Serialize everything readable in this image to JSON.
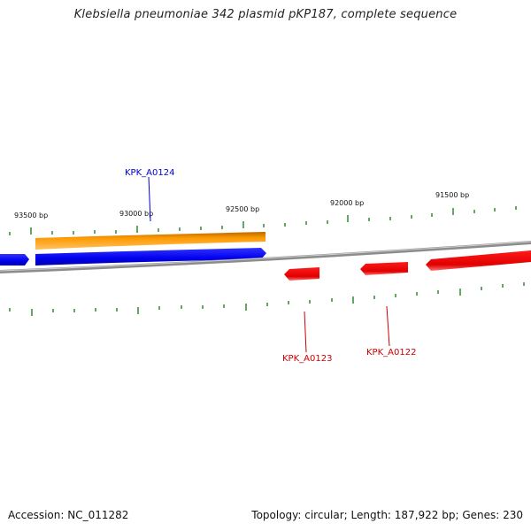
{
  "title": "Klebsiella pneumoniae 342 plasmid pKP187, complete sequence",
  "footer": {
    "accession": "Accession: NC_011282",
    "topology": "Topology: circular; Length: 187,922 bp; Genes: 230"
  },
  "colors": {
    "backbone": "#8c8c8c",
    "tick": "#2e8b2e",
    "forward_gene": "#0000ee",
    "reverse_gene": "#ee0000",
    "orf": "#ff9900",
    "forward_label": "#0000cc",
    "reverse_label": "#cc0000"
  },
  "tick_labels": [
    "93500 bp",
    "93000 bp",
    "92500 bp",
    "92000 bp",
    "91500 bp"
  ],
  "gene_labels": {
    "kpk_a0124": "KPK_A0124",
    "kpk_a0123": "KPK_A0123",
    "kpk_a0122": "KPK_A0122"
  }
}
